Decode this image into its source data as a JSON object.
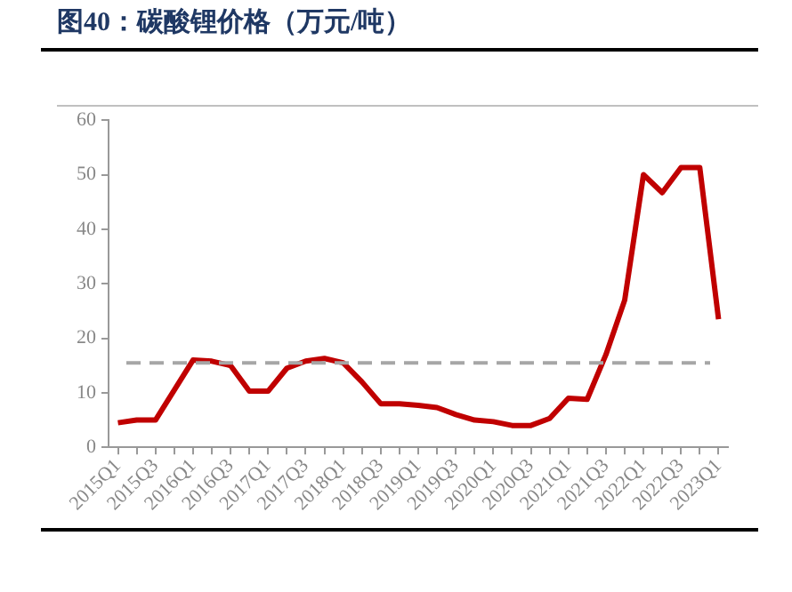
{
  "chart_data": {
    "type": "line",
    "title": "图40：碳酸锂价格（万元/吨）",
    "categories": [
      "2015Q1",
      null,
      "2015Q3",
      null,
      "2016Q1",
      null,
      "2016Q3",
      null,
      "2017Q1",
      null,
      "2017Q3",
      null,
      "2018Q1",
      null,
      "2018Q3",
      null,
      "2019Q1",
      null,
      "2019Q3",
      null,
      "2020Q1",
      null,
      "2020Q3",
      null,
      "2021Q1",
      null,
      "2021Q3",
      null,
      "2022Q1",
      null,
      "2022Q3",
      null,
      "2023Q1"
    ],
    "series": [
      {
        "color": "#c00000",
        "values": [
          4.5,
          5,
          5,
          10.5,
          16,
          15.8,
          15,
          10.3,
          10.3,
          14.5,
          15.8,
          16.3,
          15.5,
          12,
          8,
          8,
          7.7,
          7.3,
          6,
          5,
          4.7,
          4,
          4,
          5.3,
          9,
          8.8,
          17,
          27,
          50,
          46.7,
          51.3,
          51.3,
          23.5
        ]
      }
    ],
    "ylim": [
      0,
      60
    ],
    "yticks": [
      0,
      10,
      20,
      30,
      40,
      50,
      60
    ],
    "grid": false,
    "legend": false,
    "marker": "none",
    "line_style": "solid",
    "ref_lines": [
      {
        "axis": "y",
        "value": 15.5,
        "color": "#a6a6a6",
        "line_style": "dashed"
      }
    ]
  }
}
